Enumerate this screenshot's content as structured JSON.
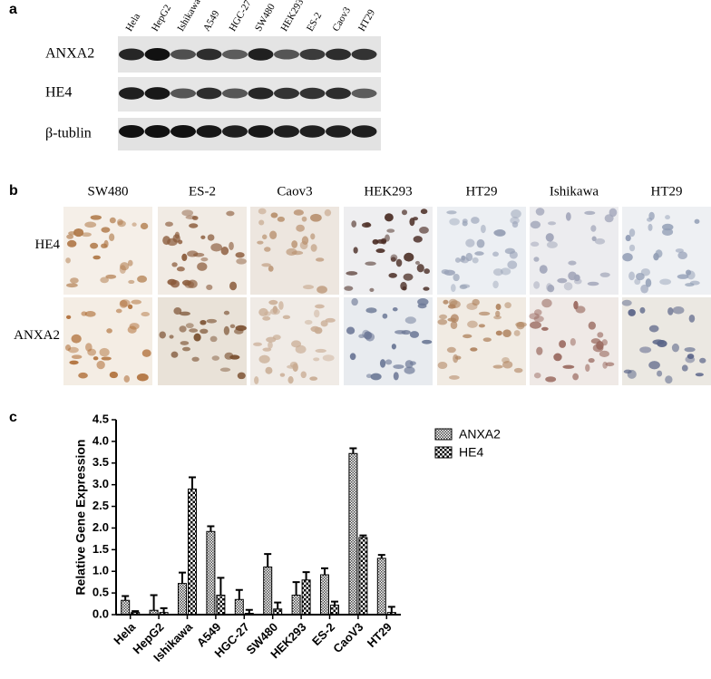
{
  "panel_labels": [
    "a",
    "b",
    "c"
  ],
  "panel_a": {
    "lanes": [
      "Hela",
      "HepG2",
      "Ishikawa",
      "A549",
      "HGC-27",
      "SW480",
      "HEK293",
      "ES-2",
      "Caov3",
      "HT29"
    ],
    "rows": [
      "ANXA2",
      "HE4",
      "β-tublin"
    ]
  },
  "panel_b": {
    "columns": [
      "SW480",
      "ES-2",
      "Caov3",
      "HEK293",
      "HT29",
      "Ishikawa",
      "HT29"
    ],
    "rows": [
      "HE4",
      "ANXA2"
    ]
  },
  "chart_data": {
    "type": "bar",
    "y_label": "Relative Gene Expression",
    "categories": [
      "Hela",
      "HepG2",
      "Ishikawa",
      "A549",
      "HGC-27",
      "SW480",
      "HEK293",
      "ES-2",
      "CaoV3",
      "HT29"
    ],
    "series": [
      {
        "name": "ANXA2",
        "color": "#4a4a4a",
        "values": [
          0.33,
          0.1,
          0.72,
          1.92,
          0.35,
          1.1,
          0.45,
          0.92,
          3.72,
          1.3
        ],
        "errors": [
          0.1,
          0.35,
          0.25,
          0.12,
          0.22,
          0.3,
          0.3,
          0.15,
          0.12,
          0.08
        ]
      },
      {
        "name": "HE4",
        "color": "#000000",
        "values": [
          0.05,
          0.05,
          2.9,
          0.45,
          0.03,
          0.13,
          0.8,
          0.22,
          1.78,
          0.05
        ],
        "errors": [
          0.03,
          0.1,
          0.27,
          0.4,
          0.08,
          0.15,
          0.18,
          0.08,
          0.05,
          0.13
        ]
      }
    ],
    "ylim": [
      0,
      4.5
    ],
    "yticks": [
      {
        "value": 0,
        "label": "0.0"
      },
      0.5,
      {
        "value": 1,
        "label": "1.0"
      },
      1.5,
      {
        "value": 2,
        "label": "2.0"
      },
      2.5,
      {
        "value": 3,
        "label": "3.0"
      },
      3.5,
      {
        "value": 4,
        "label": "4.0"
      },
      4.5
    ],
    "legend": "right"
  }
}
